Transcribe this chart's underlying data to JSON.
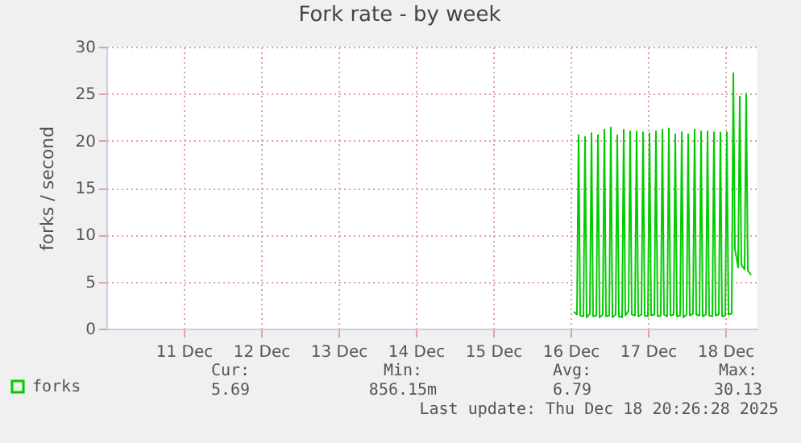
{
  "chart_data": {
    "type": "line",
    "title": "Fork rate - by week",
    "ylabel": "forks / second",
    "x": [
      "2025-12-16T13:00",
      "2025-12-16T14:00",
      "2025-12-16T14:30",
      "2025-12-16T15:00",
      "2025-12-16T16:00",
      "2025-12-16T16:30",
      "2025-12-16T17:00",
      "2025-12-16T18:00",
      "2025-12-16T18:30",
      "2025-12-16T19:00",
      "2025-12-16T20:00",
      "2025-12-16T20:30",
      "2025-12-16T21:00",
      "2025-12-16T22:00",
      "2025-12-16T22:30",
      "2025-12-16T23:00",
      "2025-12-17T00:00",
      "2025-12-17T00:30",
      "2025-12-17T01:00",
      "2025-12-17T02:00",
      "2025-12-17T02:30",
      "2025-12-17T03:00",
      "2025-12-17T04:00",
      "2025-12-17T04:30",
      "2025-12-17T05:00",
      "2025-12-17T06:00",
      "2025-12-17T06:30",
      "2025-12-17T07:00",
      "2025-12-17T08:00",
      "2025-12-17T08:30",
      "2025-12-17T09:00",
      "2025-12-17T10:00",
      "2025-12-17T10:30",
      "2025-12-17T11:00",
      "2025-12-17T12:00",
      "2025-12-17T12:30",
      "2025-12-17T13:00",
      "2025-12-17T14:00",
      "2025-12-17T14:30",
      "2025-12-17T15:00",
      "2025-12-17T16:00",
      "2025-12-17T16:30",
      "2025-12-17T17:00",
      "2025-12-17T18:00",
      "2025-12-17T18:30",
      "2025-12-17T19:00",
      "2025-12-17T20:00",
      "2025-12-17T20:30",
      "2025-12-17T21:00",
      "2025-12-17T22:00",
      "2025-12-17T22:30",
      "2025-12-17T23:00",
      "2025-12-18T00:00",
      "2025-12-18T00:30",
      "2025-12-18T01:00",
      "2025-12-18T02:00",
      "2025-12-18T02:30",
      "2025-12-18T03:00",
      "2025-12-18T04:00",
      "2025-12-18T04:30",
      "2025-12-18T05:00",
      "2025-12-18T06:00",
      "2025-12-18T06:30",
      "2025-12-18T07:00",
      "2025-12-18T08:00",
      "2025-12-18T08:30",
      "2025-12-18T09:00",
      "2025-12-18T10:00",
      "2025-12-18T10:30",
      "2025-12-18T11:00",
      "2025-12-18T12:00",
      "2025-12-18T12:30",
      "2025-12-18T13:00",
      "2025-12-18T14:00",
      "2025-12-18T14:30",
      "2025-12-18T15:00",
      "2025-12-18T16:00",
      "2025-12-18T16:30",
      "2025-12-18T17:00",
      "2025-12-18T18:00",
      "2025-12-18T18:30",
      "2025-12-18T19:00",
      "2025-12-18T20:00"
    ],
    "series": [
      {
        "name": "forks",
        "color": "#00cc00",
        "values": [
          1.8,
          1.5,
          20.6,
          1.4,
          1.3,
          20.4,
          1.2,
          1.6,
          20.8,
          1.3,
          1.4,
          20.6,
          1.2,
          1.5,
          21.2,
          1.3,
          1.4,
          21.4,
          1.2,
          1.5,
          20.6,
          1.3,
          1.2,
          21.2,
          1.4,
          1.9,
          21.0,
          1.5,
          1.4,
          21.0,
          1.3,
          1.5,
          20.9,
          1.4,
          1.3,
          20.8,
          1.4,
          1.5,
          21.0,
          1.3,
          1.4,
          21.2,
          1.5,
          1.3,
          21.3,
          1.4,
          1.5,
          20.7,
          1.3,
          1.4,
          20.9,
          1.2,
          1.5,
          20.7,
          1.4,
          1.6,
          21.2,
          1.5,
          1.4,
          21.0,
          1.3,
          1.5,
          21.0,
          1.4,
          1.3,
          20.9,
          1.4,
          1.5,
          20.9,
          1.3,
          1.4,
          20.9,
          1.5,
          1.6,
          27.2,
          8.5,
          6.5,
          24.7,
          6.8,
          6.3,
          25.0,
          6.2,
          5.7
        ]
      }
    ],
    "xlim": [
      "2025-12-10T12:00",
      "2025-12-18T22:00"
    ],
    "xticks": [
      {
        "value": "2025-12-11T12:00",
        "label": "11 Dec"
      },
      {
        "value": "2025-12-12T12:00",
        "label": "12 Dec"
      },
      {
        "value": "2025-12-13T12:00",
        "label": "13 Dec"
      },
      {
        "value": "2025-12-14T12:00",
        "label": "14 Dec"
      },
      {
        "value": "2025-12-15T12:00",
        "label": "15 Dec"
      },
      {
        "value": "2025-12-16T12:00",
        "label": "16 Dec"
      },
      {
        "value": "2025-12-17T12:00",
        "label": "17 Dec"
      },
      {
        "value": "2025-12-18T12:00",
        "label": "18 Dec"
      }
    ],
    "ylim": [
      0,
      30
    ],
    "yticks": [
      0,
      5,
      10,
      15,
      20,
      25,
      30
    ],
    "grid": true,
    "legend": "bottom left",
    "marker": "none",
    "line_style": "solid",
    "annotations": [
      "Cur:",
      "Min:",
      "Avg:",
      "Max:",
      "5.69",
      "856.15m",
      "6.79",
      "30.13",
      "Last update: Thu Dec 18 20:26:28 2025"
    ]
  }
}
